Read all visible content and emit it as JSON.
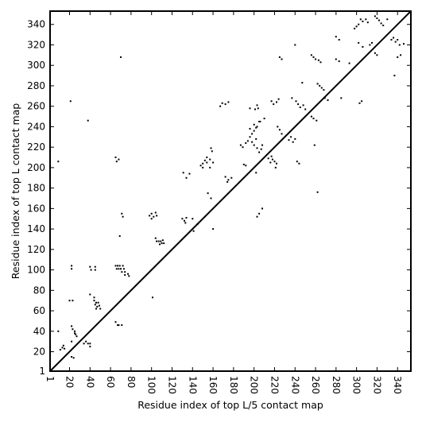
{
  "chart_data": {
    "type": "scatter",
    "title": "",
    "xlabel": "Residue index of top L/5 contact map",
    "ylabel": "Residue index of top L contact map",
    "xlim": [
      1,
      353
    ],
    "ylim": [
      1,
      353
    ],
    "grid": false,
    "diagonal": true,
    "xticks": [
      1,
      20,
      40,
      60,
      80,
      100,
      120,
      140,
      160,
      180,
      200,
      220,
      240,
      260,
      280,
      300,
      320,
      340
    ],
    "yticks": [
      1,
      20,
      40,
      60,
      80,
      100,
      120,
      140,
      160,
      180,
      200,
      220,
      240,
      260,
      280,
      300,
      320,
      340
    ],
    "series": [
      {
        "points": [
          [
            21,
            265
          ],
          [
            9,
            206
          ],
          [
            70,
            308
          ],
          [
            65,
            210
          ],
          [
            66,
            206
          ],
          [
            68,
            208
          ],
          [
            71,
            155
          ],
          [
            72,
            152
          ],
          [
            69,
            133
          ],
          [
            38,
            246
          ],
          [
            65,
            104
          ],
          [
            67,
            104
          ],
          [
            69,
            104
          ],
          [
            72,
            104
          ],
          [
            66,
            101
          ],
          [
            68,
            101
          ],
          [
            70,
            101
          ],
          [
            73,
            101
          ],
          [
            71,
            98
          ],
          [
            74,
            98
          ],
          [
            77,
            96
          ],
          [
            78,
            94
          ],
          [
            74,
            95
          ],
          [
            40,
            103
          ],
          [
            45,
            103
          ],
          [
            45,
            100
          ],
          [
            41,
            100
          ],
          [
            22,
            104
          ],
          [
            22,
            101
          ],
          [
            20,
            70
          ],
          [
            23,
            70
          ],
          [
            44,
            73
          ],
          [
            44,
            70
          ],
          [
            46,
            68
          ],
          [
            48,
            68
          ],
          [
            45,
            66
          ],
          [
            47,
            64
          ],
          [
            49,
            65
          ],
          [
            50,
            62
          ],
          [
            46,
            62
          ],
          [
            40,
            76
          ],
          [
            65,
            49
          ],
          [
            67,
            46
          ],
          [
            68,
            46
          ],
          [
            71,
            46
          ],
          [
            22,
            45
          ],
          [
            23,
            42
          ],
          [
            25,
            40
          ],
          [
            26,
            37
          ],
          [
            27,
            35
          ],
          [
            25,
            38
          ],
          [
            22,
            30
          ],
          [
            24,
            14
          ],
          [
            22,
            15
          ],
          [
            14,
            26
          ],
          [
            15,
            23
          ],
          [
            13,
            24
          ],
          [
            11,
            22
          ],
          [
            9,
            40
          ],
          [
            36,
            30
          ],
          [
            38,
            28
          ],
          [
            40,
            28
          ],
          [
            40,
            25
          ],
          [
            34,
            28
          ],
          [
            100,
            155
          ],
          [
            102,
            152
          ],
          [
            104,
            156
          ],
          [
            105,
            153
          ],
          [
            98,
            153
          ],
          [
            100,
            150
          ],
          [
            104,
            131
          ],
          [
            105,
            128
          ],
          [
            107,
            128
          ],
          [
            109,
            128
          ],
          [
            110,
            126
          ],
          [
            112,
            126
          ],
          [
            111,
            129
          ],
          [
            108,
            125
          ],
          [
            101,
            73
          ],
          [
            130,
            150
          ],
          [
            132,
            148
          ],
          [
            134,
            151
          ],
          [
            133,
            146
          ],
          [
            131,
            195
          ],
          [
            134,
            190
          ],
          [
            137,
            194
          ],
          [
            140,
            150
          ],
          [
            141,
            138
          ],
          [
            145,
            145
          ],
          [
            148,
            202
          ],
          [
            150,
            204
          ],
          [
            152,
            207
          ],
          [
            154,
            205
          ],
          [
            150,
            200
          ],
          [
            154,
            210
          ],
          [
            157,
            208
          ],
          [
            158,
            219
          ],
          [
            159,
            216
          ],
          [
            157,
            200
          ],
          [
            160,
            205
          ],
          [
            158,
            170
          ],
          [
            155,
            175
          ],
          [
            160,
            140
          ],
          [
            167,
            260
          ],
          [
            169,
            263
          ],
          [
            172,
            262
          ],
          [
            175,
            264
          ],
          [
            172,
            191
          ],
          [
            175,
            188
          ],
          [
            178,
            190
          ],
          [
            174,
            186
          ],
          [
            187,
            222
          ],
          [
            189,
            220
          ],
          [
            192,
            224
          ],
          [
            190,
            203
          ],
          [
            194,
            226
          ],
          [
            192,
            202
          ],
          [
            196,
            258
          ],
          [
            201,
            257
          ],
          [
            203,
            261
          ],
          [
            204,
            258
          ],
          [
            196,
            230
          ],
          [
            198,
            233
          ],
          [
            200,
            236
          ],
          [
            202,
            239
          ],
          [
            200,
            242
          ],
          [
            203,
            240
          ],
          [
            205,
            245
          ],
          [
            196,
            238
          ],
          [
            198,
            225
          ],
          [
            200,
            222
          ],
          [
            202,
            228
          ],
          [
            203,
            219
          ],
          [
            205,
            215
          ],
          [
            207,
            218
          ],
          [
            208,
            222
          ],
          [
            210,
            248
          ],
          [
            206,
            245
          ],
          [
            202,
            195
          ],
          [
            203,
            152
          ],
          [
            205,
            155
          ],
          [
            208,
            160
          ],
          [
            214,
            209
          ],
          [
            216,
            205
          ],
          [
            218,
            208
          ],
          [
            220,
            206
          ],
          [
            217,
            211
          ],
          [
            222,
            204
          ],
          [
            221,
            200
          ],
          [
            225,
            237
          ],
          [
            227,
            233
          ],
          [
            223,
            240
          ],
          [
            217,
            265
          ],
          [
            219,
            262
          ],
          [
            222,
            264
          ],
          [
            224,
            267
          ],
          [
            225,
            308
          ],
          [
            227,
            306
          ],
          [
            234,
            227
          ],
          [
            236,
            230
          ],
          [
            238,
            225
          ],
          [
            242,
            206
          ],
          [
            244,
            204
          ],
          [
            240,
            228
          ],
          [
            237,
            268
          ],
          [
            241,
            265
          ],
          [
            243,
            262
          ],
          [
            245,
            259
          ],
          [
            248,
            261
          ],
          [
            250,
            257
          ],
          [
            247,
            283
          ],
          [
            240,
            320
          ],
          [
            256,
            250
          ],
          [
            258,
            248
          ],
          [
            261,
            246
          ],
          [
            259,
            222
          ],
          [
            262,
            176
          ],
          [
            256,
            310
          ],
          [
            258,
            308
          ],
          [
            260,
            306
          ],
          [
            263,
            305
          ],
          [
            265,
            303
          ],
          [
            264,
            280
          ],
          [
            266,
            278
          ],
          [
            268,
            276
          ],
          [
            262,
            282
          ],
          [
            269,
            268
          ],
          [
            272,
            266
          ],
          [
            280,
            306
          ],
          [
            283,
            304
          ],
          [
            280,
            328
          ],
          [
            283,
            325
          ],
          [
            285,
            268
          ],
          [
            293,
            302
          ],
          [
            298,
            336
          ],
          [
            300,
            338
          ],
          [
            302,
            340
          ],
          [
            304,
            345
          ],
          [
            306,
            343
          ],
          [
            302,
            322
          ],
          [
            306,
            318
          ],
          [
            303,
            263
          ],
          [
            305,
            265
          ],
          [
            309,
            345
          ],
          [
            311,
            342
          ],
          [
            313,
            320
          ],
          [
            315,
            322
          ],
          [
            318,
            348
          ],
          [
            320,
            346
          ],
          [
            322,
            344
          ],
          [
            324,
            341
          ],
          [
            326,
            339
          ],
          [
            330,
            345
          ],
          [
            318,
            312
          ],
          [
            320,
            310
          ],
          [
            334,
            325
          ],
          [
            336,
            327
          ],
          [
            338,
            323
          ],
          [
            340,
            325
          ],
          [
            342,
            320
          ],
          [
            346,
            321
          ],
          [
            340,
            308
          ],
          [
            343,
            310
          ],
          [
            337,
            290
          ]
        ]
      }
    ]
  }
}
